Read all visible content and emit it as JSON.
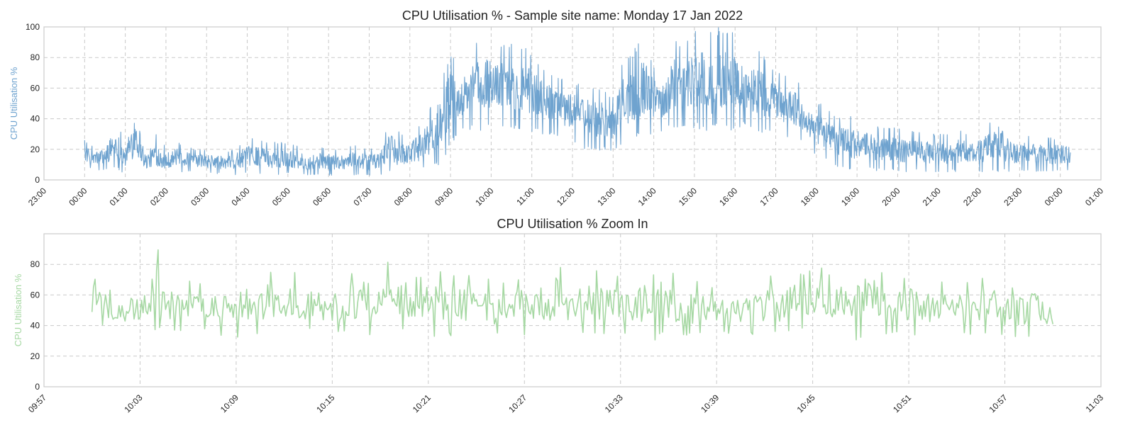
{
  "chart_data": [
    {
      "type": "line",
      "title": "CPU Utilisation % - Sample site name: Monday 17 Jan 2022",
      "ylabel": "CPU Utilisation %",
      "ylim": [
        0,
        100
      ],
      "yticks": [
        0,
        20,
        40,
        60,
        80,
        100
      ],
      "xticks": [
        "23:00",
        "00:00",
        "01:00",
        "02:00",
        "03:00",
        "04:00",
        "05:00",
        "06:00",
        "07:00",
        "08:00",
        "09:00",
        "10:00",
        "11:00",
        "12:00",
        "13:00",
        "14:00",
        "15:00",
        "16:00",
        "17:00",
        "18:00",
        "19:00",
        "20:00",
        "21:00",
        "22:00",
        "23:00",
        "00:00",
        "01:00"
      ],
      "xlim_hours": [
        -1,
        25
      ],
      "color": "#6fa3cf",
      "grid": true,
      "series": [
        {
          "x_hours": [
            0.0,
            0.25,
            0.5,
            0.75,
            1.0,
            1.25,
            1.5,
            1.75,
            2.0,
            2.25,
            2.5,
            2.75,
            3.0,
            3.25,
            3.5,
            3.75,
            4.0,
            4.25,
            4.5,
            4.75,
            5.0,
            5.25,
            5.5,
            5.75,
            6.0,
            6.25,
            6.5,
            6.75,
            7.0,
            7.25,
            7.5,
            7.75,
            8.0,
            8.25,
            8.5,
            8.75,
            9.0,
            9.25,
            9.5,
            9.75,
            10.0,
            10.25,
            10.5,
            10.75,
            11.0,
            11.25,
            11.5,
            11.75,
            12.0,
            12.25,
            12.5,
            12.75,
            13.0,
            13.25,
            13.5,
            13.75,
            14.0,
            14.25,
            14.5,
            14.75,
            15.0,
            15.25,
            15.5,
            15.75,
            16.0,
            16.25,
            16.5,
            16.75,
            17.0,
            17.25,
            17.5,
            17.75,
            18.0,
            18.25,
            18.5,
            18.75,
            19.0,
            19.25,
            19.5,
            19.75,
            20.0,
            20.25,
            20.5,
            20.75,
            21.0,
            21.25,
            21.5,
            21.75,
            22.0,
            22.25,
            22.5,
            22.75,
            23.0,
            23.25,
            23.5,
            23.75,
            24.0,
            24.25
          ],
          "low": [
            8,
            6,
            6,
            7,
            4,
            3,
            3,
            3,
            3,
            5,
            5,
            5,
            4,
            4,
            3,
            3,
            4,
            4,
            3,
            3,
            4,
            3,
            3,
            3,
            3,
            3,
            3,
            3,
            3,
            3,
            4,
            3,
            4,
            5,
            8,
            10,
            22,
            30,
            32,
            32,
            34,
            34,
            32,
            32,
            30,
            30,
            28,
            26,
            25,
            20,
            18,
            20,
            18,
            22,
            25,
            28,
            30,
            32,
            34,
            34,
            33,
            32,
            10,
            30,
            34,
            34,
            32,
            30,
            30,
            28,
            26,
            24,
            15,
            12,
            8,
            7,
            6,
            6,
            6,
            6,
            5,
            5,
            5,
            5,
            5,
            5,
            5,
            5,
            5,
            5,
            5,
            5,
            5,
            5,
            5,
            5,
            5,
            6
          ],
          "high": [
            26,
            22,
            25,
            42,
            24,
            60,
            20,
            31,
            22,
            25,
            22,
            20,
            20,
            20,
            18,
            22,
            27,
            28,
            24,
            25,
            24,
            22,
            20,
            22,
            21,
            20,
            22,
            23,
            20,
            22,
            37,
            32,
            30,
            38,
            48,
            65,
            85,
            75,
            85,
            95,
            92,
            90,
            90,
            88,
            85,
            75,
            70,
            68,
            65,
            64,
            62,
            60,
            55,
            80,
            85,
            95,
            75,
            74,
            95,
            88,
            100,
            100,
            100,
            100,
            95,
            85,
            88,
            80,
            72,
            70,
            68,
            50,
            52,
            47,
            42,
            43,
            40,
            38,
            35,
            35,
            34,
            32,
            33,
            31,
            30,
            30,
            33,
            30,
            32,
            38,
            44,
            31,
            30,
            30,
            29,
            28,
            28,
            30
          ]
        }
      ]
    },
    {
      "type": "line",
      "title": "CPU Utilisation % Zoom In",
      "ylabel": "CPU Utilisation %",
      "ylim": [
        0,
        100
      ],
      "yticks": [
        0,
        20,
        40,
        60,
        80
      ],
      "xticks": [
        "09:57",
        "10:03",
        "10:09",
        "10:15",
        "10:21",
        "10:27",
        "10:33",
        "10:39",
        "10:45",
        "10:51",
        "10:57",
        "11:03"
      ],
      "xlim_minutes": [
        597,
        663
      ],
      "data_range_minutes": [
        600,
        660
      ],
      "color": "#a6d8a3",
      "grid": true,
      "series": [
        {
          "x_minutes": [
            600,
            601,
            602,
            603,
            604,
            605,
            606,
            607,
            608,
            609,
            610,
            611,
            612,
            613,
            614,
            615,
            616,
            617,
            618,
            619,
            620,
            621,
            622,
            623,
            624,
            625,
            626,
            627,
            628,
            629,
            630,
            631,
            632,
            633,
            634,
            635,
            636,
            637,
            638,
            639,
            640,
            641,
            642,
            643,
            644,
            645,
            646,
            647,
            648,
            649,
            650,
            651,
            652,
            653,
            654,
            655,
            656,
            657,
            658,
            659,
            660
          ],
          "low": [
            40,
            38,
            35,
            36,
            35,
            35,
            36,
            36,
            33,
            32,
            34,
            36,
            35,
            35,
            36,
            34,
            34,
            33,
            36,
            35,
            34,
            33,
            32,
            33,
            33,
            32,
            34,
            34,
            33,
            30,
            32,
            33,
            34,
            32,
            32,
            30,
            34,
            33,
            33,
            34,
            33,
            34,
            34,
            33,
            35,
            34,
            32,
            31,
            30,
            33,
            35,
            34,
            33,
            34,
            34,
            33,
            34,
            33,
            32,
            33,
            35
          ],
          "high": [
            74,
            65,
            62,
            68,
            95,
            70,
            72,
            66,
            70,
            62,
            66,
            76,
            76,
            75,
            72,
            70,
            74,
            80,
            76,
            88,
            72,
            76,
            78,
            74,
            72,
            70,
            70,
            74,
            75,
            84,
            72,
            78,
            74,
            72,
            76,
            90,
            78,
            66,
            72,
            76,
            68,
            64,
            74,
            72,
            90,
            88,
            74,
            76,
            90,
            80,
            70,
            74,
            72,
            70,
            68,
            70,
            76,
            66,
            68,
            70,
            54
          ]
        }
      ]
    }
  ]
}
